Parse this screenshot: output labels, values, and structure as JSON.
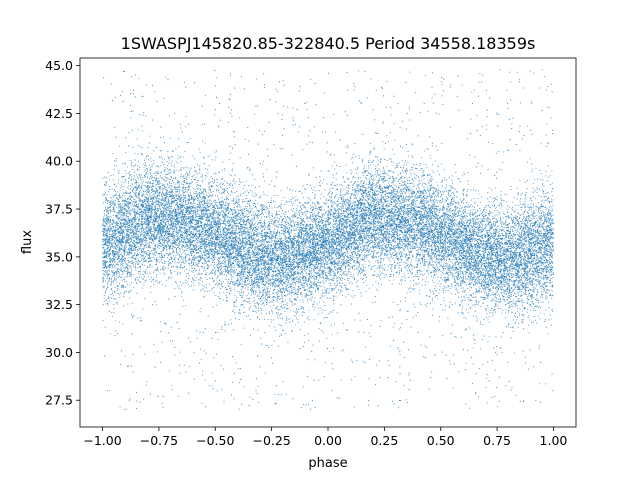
{
  "chart_data": {
    "type": "scatter",
    "title": "1SWASPJ145820.85-322840.5 Period 34558.18359s",
    "xlabel": "phase",
    "ylabel": "flux",
    "xlim": [
      -1.1,
      1.1
    ],
    "ylim": [
      26.1,
      45.4
    ],
    "x_ticks": [
      "−1.00",
      "−0.75",
      "−0.50",
      "−0.25",
      "0.00",
      "0.25",
      "0.50",
      "0.75",
      "1.00"
    ],
    "x_tick_values": [
      -1.0,
      -0.75,
      -0.5,
      -0.25,
      0.0,
      0.25,
      0.5,
      0.75,
      1.0
    ],
    "y_ticks": [
      "27.5",
      "30.0",
      "32.5",
      "35.0",
      "37.5",
      "40.0",
      "42.5",
      "45.0"
    ],
    "y_tick_values": [
      27.5,
      30.0,
      32.5,
      35.0,
      37.5,
      40.0,
      42.5,
      45.0
    ],
    "grid": false,
    "legend": "none",
    "marker_color": "#1f77b4",
    "series": [
      {
        "phase_range": [
          -1.0,
          1.0
        ],
        "profile_phase": [
          -1.0,
          -0.9,
          -0.8,
          -0.7,
          -0.6,
          -0.5,
          -0.4,
          -0.3,
          -0.2,
          -0.1,
          0.0,
          0.1,
          0.2,
          0.3,
          0.4,
          0.5,
          0.6,
          0.7,
          0.8,
          0.9,
          1.0
        ],
        "profile_flux_median": [
          35.6,
          36.3,
          37.1,
          36.9,
          36.7,
          36.1,
          35.5,
          35.0,
          34.8,
          35.2,
          35.6,
          36.3,
          37.1,
          36.9,
          36.7,
          36.1,
          35.5,
          35.0,
          34.8,
          35.2,
          35.6
        ],
        "profile_scatter_1sigma": [
          1.5,
          1.5,
          1.4,
          1.4,
          1.4,
          1.4,
          1.4,
          1.4,
          1.4,
          1.4,
          1.4,
          1.4,
          1.4,
          1.4,
          1.4,
          1.4,
          1.4,
          1.4,
          1.4,
          1.5,
          1.5
        ],
        "outlier_flux_range": [
          27.0,
          44.8
        ]
      }
    ]
  }
}
